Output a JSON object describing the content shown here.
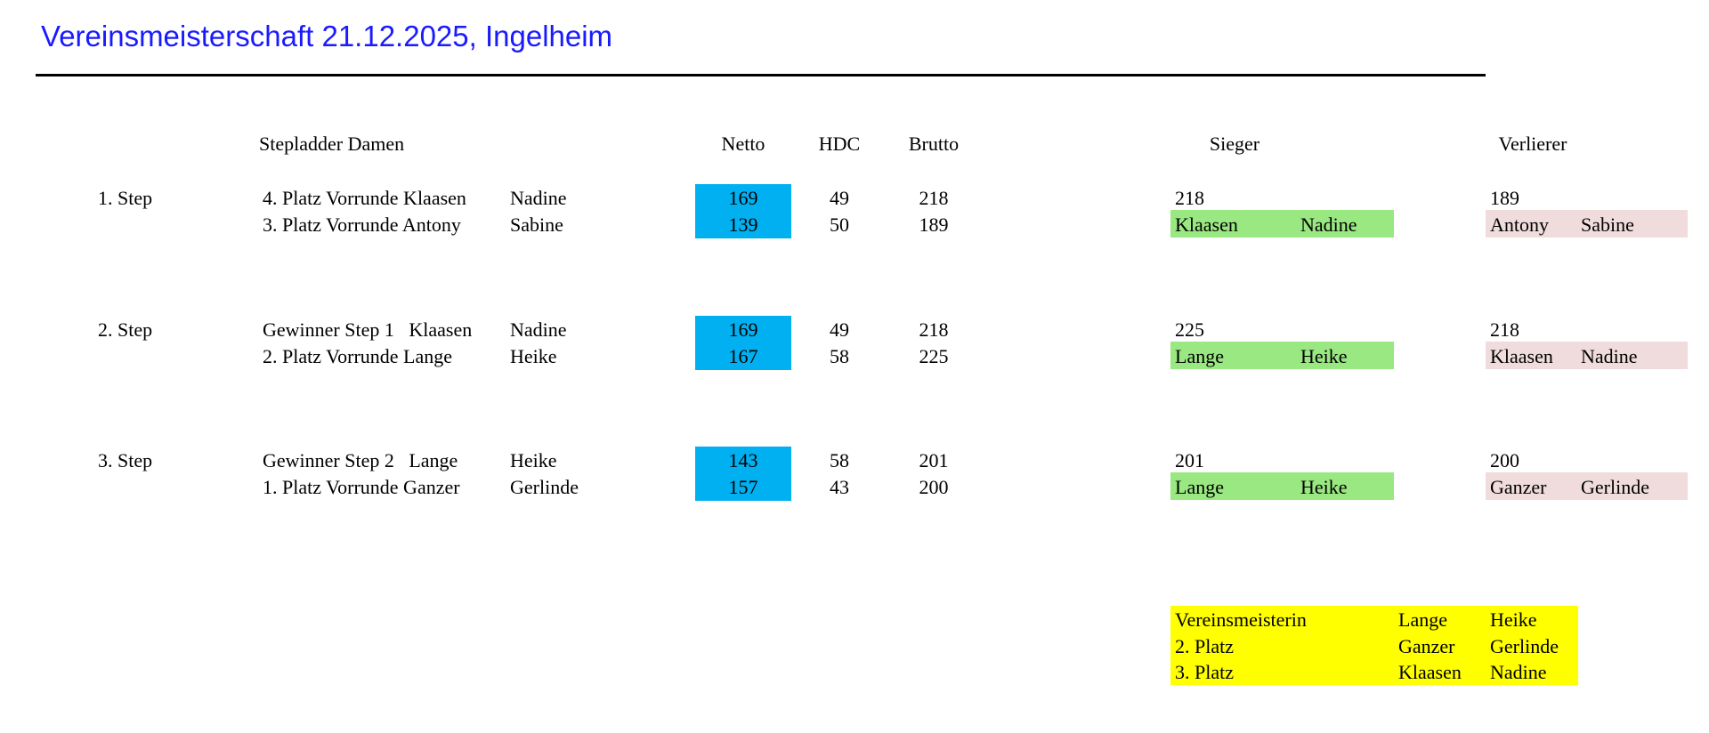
{
  "title": "Vereinsmeisterschaft 21.12.2025, Ingelheim",
  "headers": {
    "section": "Stepladder Damen",
    "netto": "Netto",
    "hdc": "HDC",
    "brutto": "Brutto",
    "sieger": "Sieger",
    "verlierer": "Verlierer"
  },
  "colors": {
    "netto_bg": "#00b0f0",
    "sieger_bg": "#99e881",
    "verlierer_bg": "#f0dcdc",
    "final_bg": "#ffff00",
    "title": "#1a1aff"
  },
  "steps": [
    {
      "label": "1. Step",
      "players": [
        {
          "desc": "4. Platz Vorrunde Klaasen",
          "first": "Nadine",
          "netto": "169",
          "hdc": "49",
          "brutto": "218"
        },
        {
          "desc": "3. Platz Vorrunde Antony",
          "first": "Sabine",
          "netto": "139",
          "hdc": "50",
          "brutto": "189"
        }
      ],
      "winner": {
        "score": "218",
        "last": "Klaasen",
        "first": "Nadine"
      },
      "loser": {
        "score": "189",
        "last": "Antony",
        "first": "Sabine"
      }
    },
    {
      "label": "2. Step",
      "players": [
        {
          "desc": "Gewinner Step 1   Klaasen",
          "first": "Nadine",
          "netto": "169",
          "hdc": "49",
          "brutto": "218"
        },
        {
          "desc": "2. Platz Vorrunde Lange",
          "first": "Heike",
          "netto": "167",
          "hdc": "58",
          "brutto": "225"
        }
      ],
      "winner": {
        "score": "225",
        "last": "Lange",
        "first": "Heike"
      },
      "loser": {
        "score": "218",
        "last": "Klaasen",
        "first": "Nadine"
      }
    },
    {
      "label": "3. Step",
      "players": [
        {
          "desc": "Gewinner Step 2   Lange",
          "first": "Heike",
          "netto": "143",
          "hdc": "58",
          "brutto": "201"
        },
        {
          "desc": "1. Platz Vorrunde Ganzer",
          "first": "Gerlinde",
          "netto": "157",
          "hdc": "43",
          "brutto": "200"
        }
      ],
      "winner": {
        "score": "201",
        "last": "Lange",
        "first": "Heike"
      },
      "loser": {
        "score": "200",
        "last": "Ganzer",
        "first": "Gerlinde"
      }
    }
  ],
  "final": [
    {
      "place": "Vereinsmeisterin",
      "last": "Lange",
      "first": "Heike"
    },
    {
      "place": "2. Platz",
      "last": "Ganzer",
      "first": "Gerlinde"
    },
    {
      "place": "3. Platz",
      "last": "Klaasen",
      "first": "Nadine"
    }
  ]
}
